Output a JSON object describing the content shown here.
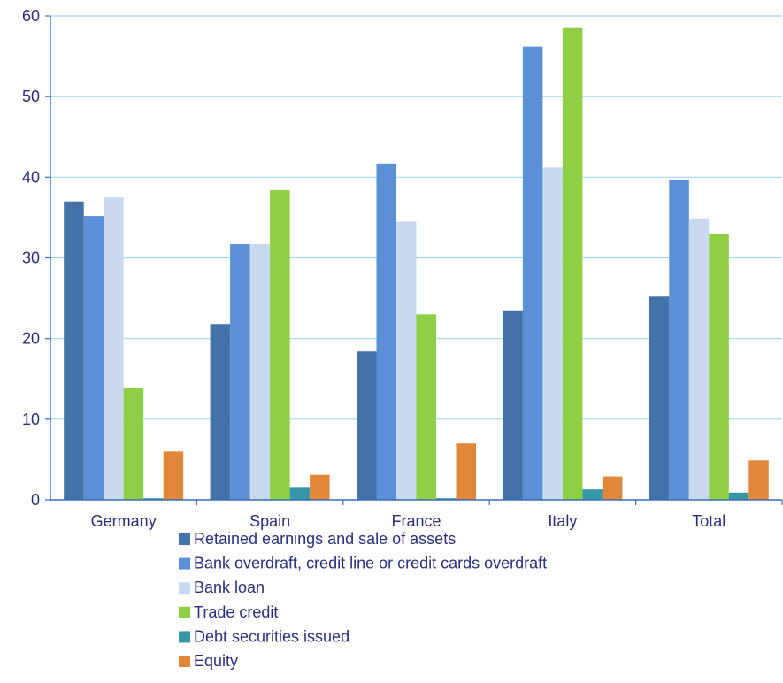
{
  "chart_data": {
    "type": "bar",
    "title": "",
    "xlabel": "",
    "ylabel": "",
    "categories": [
      "Germany",
      "Spain",
      "France",
      "Italy",
      "Total"
    ],
    "ylim": [
      0,
      60
    ],
    "yticks": [
      0,
      10,
      20,
      30,
      40,
      50,
      60
    ],
    "grid": true,
    "legend_position": "bottom",
    "series": [
      {
        "name": "Retained earnings and sale of assets",
        "color": "#4472a8",
        "values": [
          37.0,
          21.8,
          18.4,
          23.5,
          25.2
        ]
      },
      {
        "name": "Bank overdraft, credit line or credit cards overdraft",
        "color": "#5b8fd6",
        "values": [
          35.2,
          31.7,
          41.7,
          56.2,
          39.7
        ]
      },
      {
        "name": "Bank loan",
        "color": "#c9d9f0",
        "values": [
          37.5,
          31.7,
          34.5,
          41.2,
          34.9
        ]
      },
      {
        "name": "Trade credit",
        "color": "#8fcf45",
        "values": [
          13.9,
          38.4,
          23.0,
          58.5,
          33.0
        ]
      },
      {
        "name": "Debt securities issued",
        "color": "#3797a8",
        "values": [
          0.2,
          1.5,
          0.2,
          1.3,
          0.9
        ]
      },
      {
        "name": "Equity",
        "color": "#e0873a",
        "values": [
          6.0,
          3.1,
          7.0,
          2.9,
          4.9
        ]
      }
    ]
  }
}
